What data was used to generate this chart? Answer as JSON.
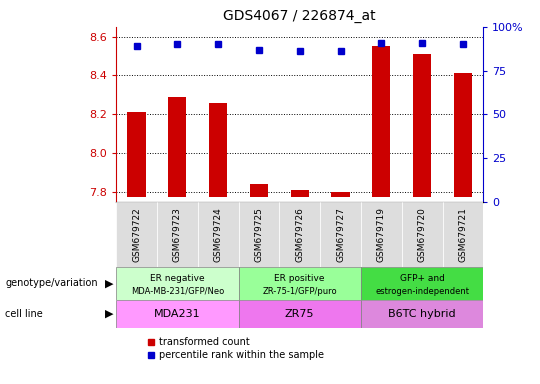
{
  "title": "GDS4067 / 226874_at",
  "samples": [
    "GSM679722",
    "GSM679723",
    "GSM679724",
    "GSM679725",
    "GSM679726",
    "GSM679727",
    "GSM679719",
    "GSM679720",
    "GSM679721"
  ],
  "transformed_count": [
    8.21,
    8.29,
    8.26,
    7.84,
    7.81,
    7.8,
    8.55,
    8.51,
    8.41
  ],
  "percentile_rank": [
    89,
    90,
    90,
    87,
    86,
    86,
    91,
    91,
    90
  ],
  "ylim_left": [
    7.75,
    8.65
  ],
  "ylim_right": [
    0,
    100
  ],
  "yticks_left": [
    7.8,
    8.0,
    8.2,
    8.4,
    8.6
  ],
  "yticks_right": [
    0,
    25,
    50,
    75,
    100
  ],
  "ytick_right_labels": [
    "0",
    "25",
    "50",
    "75",
    "100%"
  ],
  "bar_color": "#cc0000",
  "dot_color": "#0000cc",
  "bar_bottom": 7.775,
  "bar_width": 0.45,
  "groups": [
    {
      "label_top": "ER negative",
      "label_bot": "MDA-MB-231/GFP/Neo",
      "cell_line": "MDA231",
      "indices": [
        0,
        1,
        2
      ],
      "geno_color": "#ccffcc",
      "cell_color": "#ff99ff"
    },
    {
      "label_top": "ER positive",
      "label_bot": "ZR-75-1/GFP/puro",
      "cell_line": "ZR75",
      "indices": [
        3,
        4,
        5
      ],
      "geno_color": "#99ff99",
      "cell_color": "#ee77ee"
    },
    {
      "label_top": "GFP+ and",
      "label_bot": "estrogen-independent",
      "cell_line": "B6TC hybrid",
      "indices": [
        6,
        7,
        8
      ],
      "geno_color": "#44dd44",
      "cell_color": "#dd88dd"
    }
  ],
  "tick_color_left": "#cc0000",
  "tick_color_right": "#0000cc",
  "xtick_bg_color": "#dddddd",
  "legend_items": [
    "transformed count",
    "percentile rank within the sample"
  ],
  "legend_colors": [
    "#cc0000",
    "#0000cc"
  ]
}
